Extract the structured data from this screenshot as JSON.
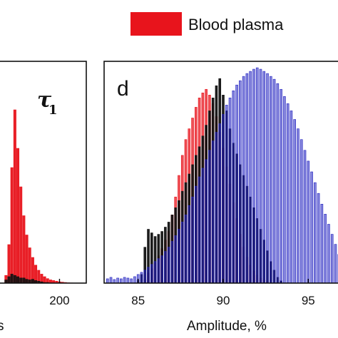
{
  "legend": {
    "label": "Blood plasma",
    "color": "#e8141c"
  },
  "left_panel": {
    "tau_symbol": "τ",
    "tau_subscript": "1",
    "x_tick": "200",
    "xlabel_fragment": "s"
  },
  "right_panel": {
    "letter": "d",
    "xlabel": "Amplitude, %",
    "x_ticks": [
      "85",
      "90",
      "95"
    ]
  },
  "chart_data": [
    {
      "type": "bar",
      "title": "",
      "xlabel": "s",
      "ylabel": "",
      "xlim": [
        160,
        218
      ],
      "x_ticks": [
        200
      ],
      "series": [
        {
          "name": "Blood plasma",
          "color": "#e8141c",
          "x": [
            164,
            166,
            168,
            170,
            172,
            174,
            176,
            178,
            180,
            182,
            184,
            186,
            188,
            190,
            192,
            194,
            196,
            198,
            200,
            202,
            204,
            206,
            208,
            210
          ],
          "values": [
            12,
            60,
            180,
            270,
            210,
            150,
            105,
            75,
            55,
            40,
            28,
            20,
            14,
            10,
            7,
            5,
            4,
            3,
            2,
            1.5,
            1,
            0.5,
            0.3,
            0.2
          ]
        },
        {
          "name": "",
          "color": "#111111",
          "x": [
            164,
            166,
            168,
            170,
            172,
            174,
            176,
            178,
            180,
            182,
            184,
            186,
            188,
            190,
            192
          ],
          "values": [
            5,
            10,
            14,
            12,
            10,
            8,
            8,
            6,
            5,
            6,
            4,
            3,
            2,
            1,
            1
          ]
        }
      ]
    },
    {
      "type": "bar",
      "title": "",
      "xlabel": "Amplitude, %",
      "ylabel": "",
      "xlim": [
        83,
        97
      ],
      "x_ticks": [
        85,
        90,
        95
      ],
      "series": [
        {
          "name": "Blood plasma",
          "color": "#e8141c",
          "x": [
            85.4,
            85.6,
            85.8,
            86.0,
            86.2,
            86.4,
            86.6,
            86.8,
            87.0,
            87.2,
            87.4,
            87.6,
            87.8,
            88.0,
            88.2,
            88.4,
            88.6,
            88.8,
            89.0,
            89.2,
            89.4,
            89.6,
            89.8,
            90.0,
            90.2,
            90.4,
            90.6,
            90.8,
            91.0,
            91.2,
            91.4,
            91.6,
            91.8,
            92.0,
            92.2,
            92.4,
            92.6
          ],
          "values": [
            5,
            14,
            20,
            28,
            38,
            48,
            60,
            72,
            95,
            120,
            150,
            178,
            200,
            215,
            230,
            245,
            258,
            265,
            270,
            262,
            250,
            232,
            210,
            188,
            162,
            138,
            112,
            90,
            68,
            50,
            36,
            25,
            17,
            11,
            7,
            4,
            2
          ]
        },
        {
          "name": "",
          "color": "#111111",
          "x": [
            85.0,
            85.2,
            85.4,
            85.6,
            85.8,
            86.0,
            86.2,
            86.4,
            86.6,
            86.8,
            87.0,
            87.2,
            87.4,
            87.6,
            87.8,
            88.0,
            88.2,
            88.4,
            88.6,
            88.8,
            89.0,
            89.2,
            89.4,
            89.6,
            89.8,
            90.0,
            90.2,
            90.4,
            90.6,
            90.8,
            91.0,
            91.2,
            91.4,
            91.6,
            91.8,
            92.0,
            92.2,
            92.4,
            92.6,
            92.8,
            93.0,
            93.2,
            93.4
          ],
          "values": [
            4,
            12,
            50,
            75,
            70,
            65,
            68,
            72,
            78,
            85,
            95,
            105,
            115,
            128,
            140,
            152,
            165,
            178,
            190,
            205,
            220,
            240,
            258,
            275,
            285,
            262,
            240,
            215,
            195,
            180,
            165,
            150,
            135,
            120,
            105,
            90,
            75,
            60,
            45,
            30,
            18,
            8,
            3
          ]
        },
        {
          "name": "",
          "color": "#2020c0",
          "x": [
            83.2,
            83.4,
            83.6,
            83.8,
            84.0,
            84.2,
            84.4,
            84.6,
            84.8,
            85.0,
            85.2,
            85.4,
            85.6,
            85.8,
            86.0,
            86.2,
            86.4,
            86.6,
            86.8,
            87.0,
            87.2,
            87.4,
            87.6,
            87.8,
            88.0,
            88.2,
            88.4,
            88.6,
            88.8,
            89.0,
            89.2,
            89.4,
            89.6,
            89.8,
            90.0,
            90.2,
            90.4,
            90.6,
            90.8,
            91.0,
            91.2,
            91.4,
            91.6,
            91.8,
            92.0,
            92.2,
            92.4,
            92.6,
            92.8,
            93.0,
            93.2,
            93.4,
            93.6,
            93.8,
            94.0,
            94.2,
            94.4,
            94.6,
            94.8,
            95.0,
            95.2,
            95.4,
            95.6,
            95.8,
            96.0,
            96.2,
            96.4,
            96.6,
            96.8
          ],
          "values": [
            6,
            8,
            5,
            7,
            6,
            8,
            7,
            6,
            9,
            12,
            15,
            18,
            22,
            26,
            30,
            34,
            38,
            44,
            50,
            58,
            66,
            75,
            85,
            95,
            108,
            120,
            135,
            148,
            160,
            172,
            185,
            198,
            210,
            222,
            235,
            248,
            258,
            268,
            276,
            282,
            288,
            292,
            295,
            298,
            300,
            298,
            295,
            292,
            288,
            284,
            278,
            270,
            260,
            250,
            240,
            228,
            215,
            200,
            185,
            170,
            155,
            140,
            125,
            110,
            96,
            82,
            68,
            54,
            40
          ]
        }
      ]
    }
  ]
}
